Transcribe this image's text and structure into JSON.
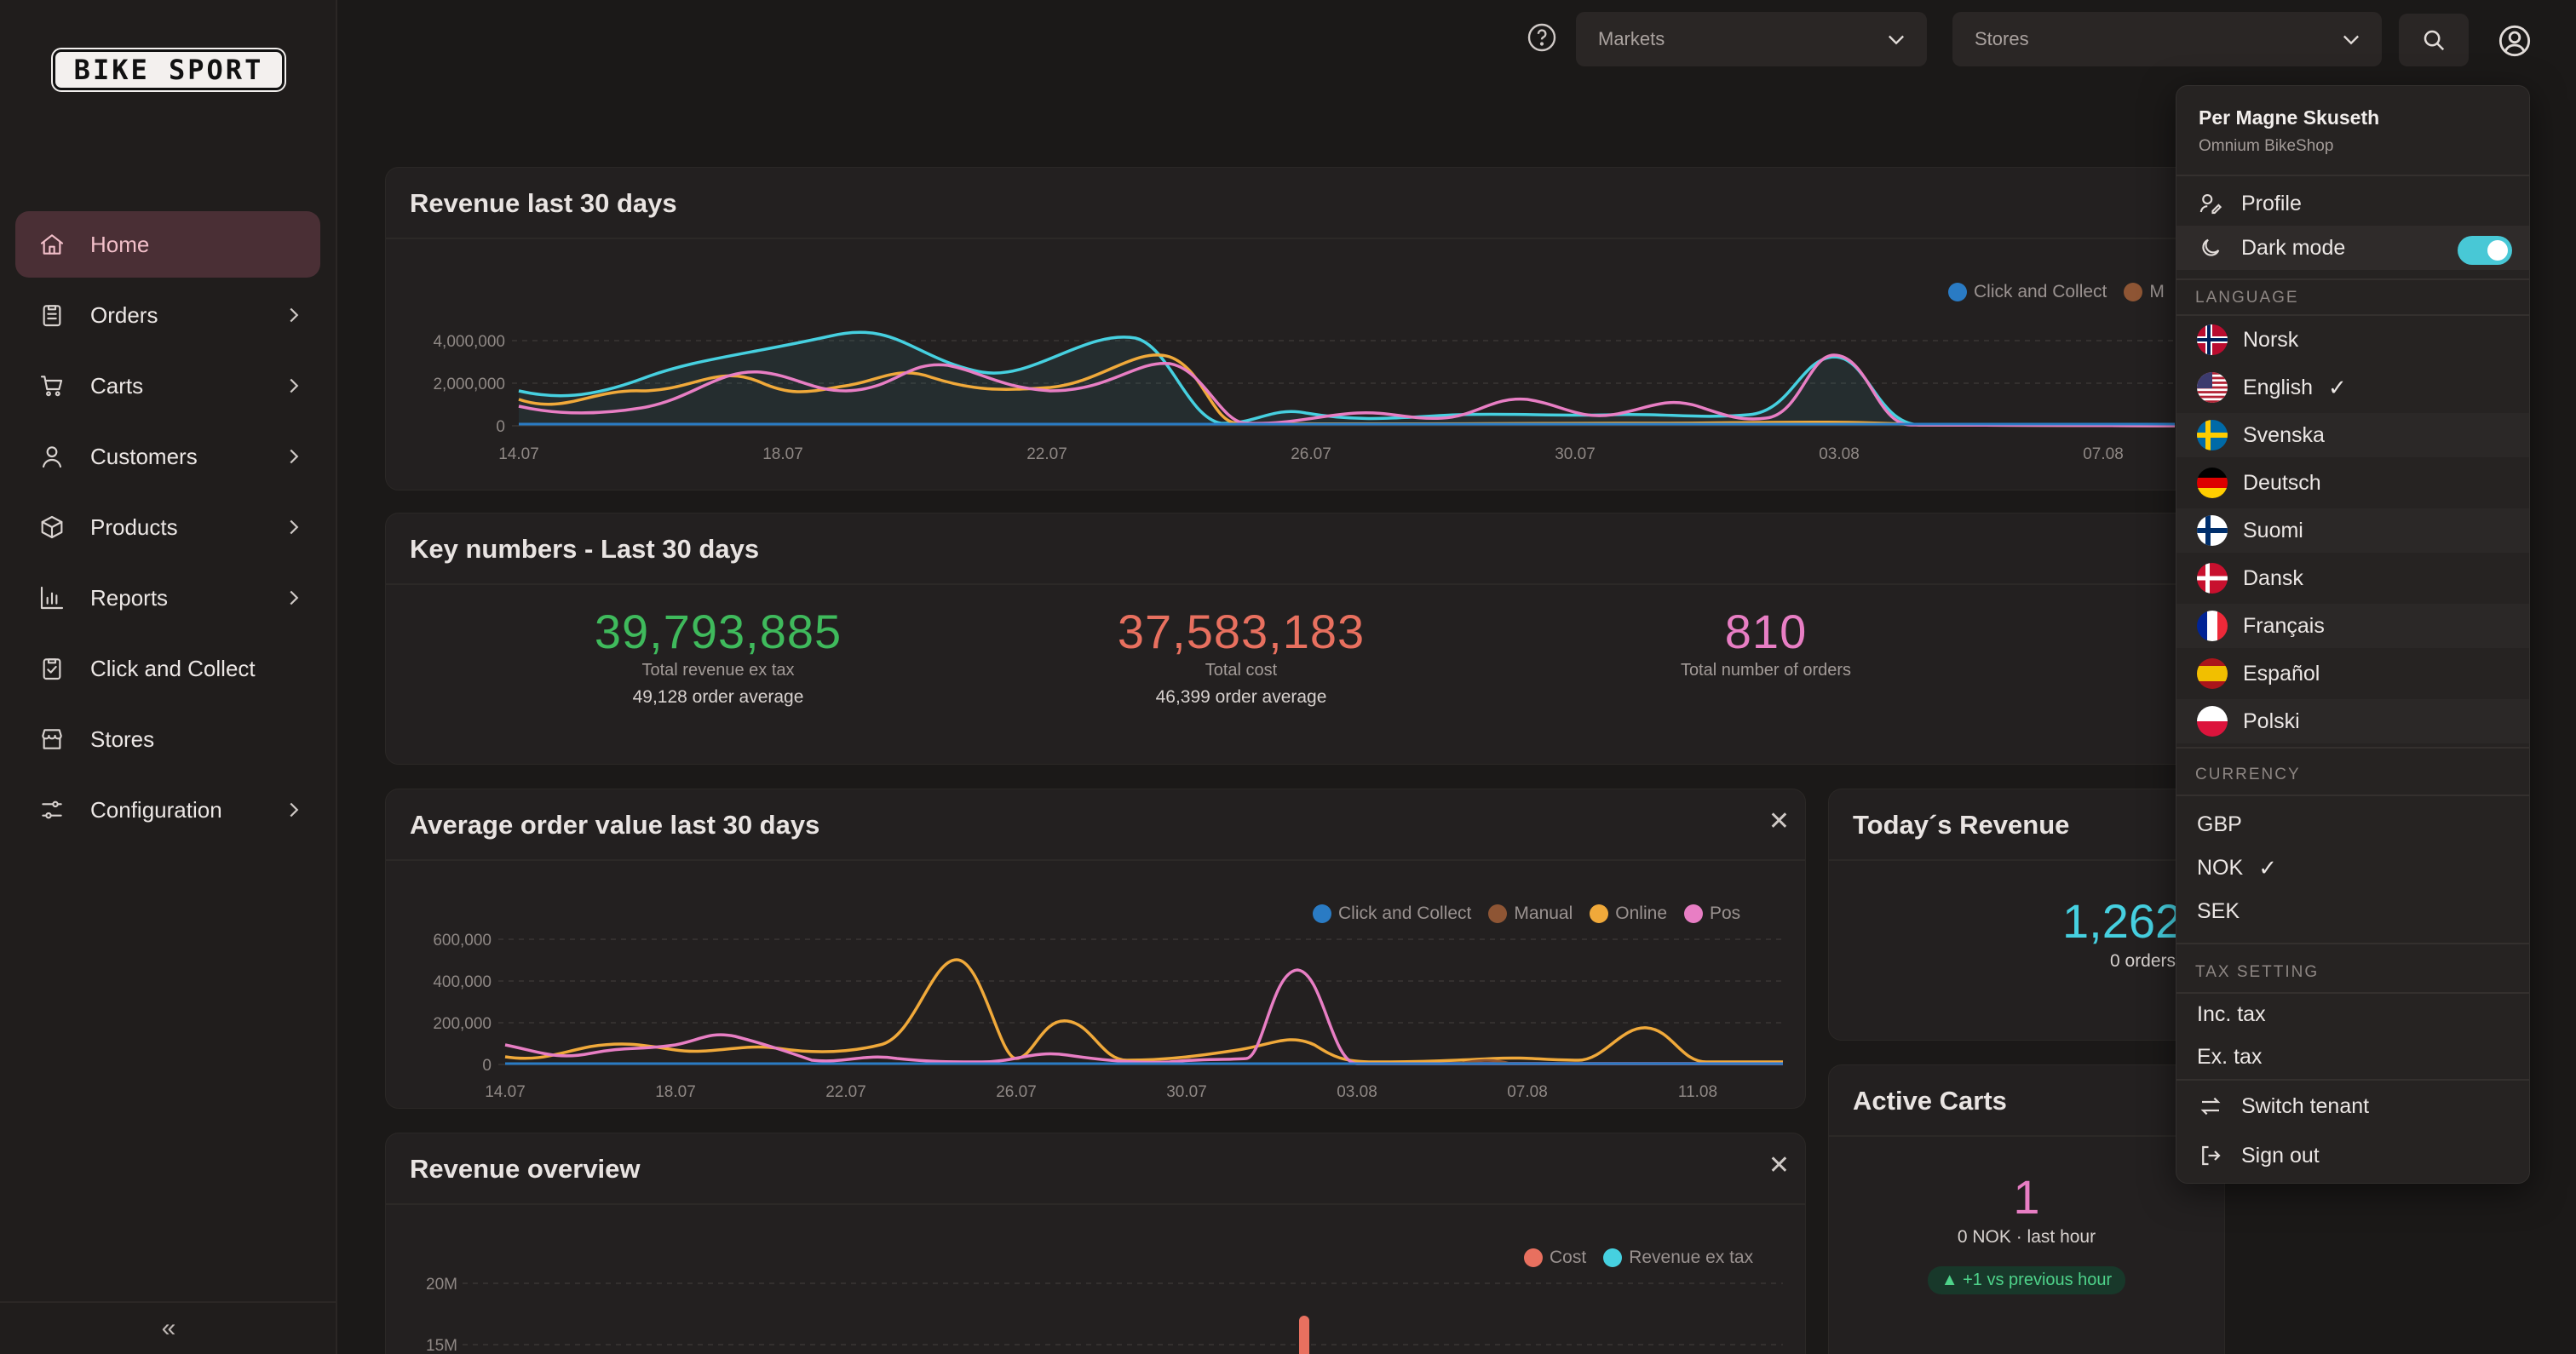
{
  "brand": {
    "logo_text": "BIKE SPORT"
  },
  "sidebar": {
    "items": [
      {
        "label": "Home",
        "icon": "home-icon",
        "active": true,
        "has_children": false
      },
      {
        "label": "Orders",
        "icon": "clipboard-icon",
        "active": false,
        "has_children": true
      },
      {
        "label": "Carts",
        "icon": "cart-icon",
        "active": false,
        "has_children": true
      },
      {
        "label": "Customers",
        "icon": "person-icon",
        "active": false,
        "has_children": true
      },
      {
        "label": "Products",
        "icon": "box-icon",
        "active": false,
        "has_children": true
      },
      {
        "label": "Reports",
        "icon": "bar-chart-icon",
        "active": false,
        "has_children": true
      },
      {
        "label": "Click and Collect",
        "icon": "clipboard-check-icon",
        "active": false,
        "has_children": false
      },
      {
        "label": "Stores",
        "icon": "store-icon",
        "active": false,
        "has_children": false
      },
      {
        "label": "Configuration",
        "icon": "sliders-icon",
        "active": false,
        "has_children": true
      }
    ],
    "collapse_label": "«"
  },
  "topbar": {
    "markets_placeholder": "Markets",
    "stores_placeholder": "Stores"
  },
  "revenue30": {
    "title": "Revenue last 30 days",
    "legend": [
      "Click and Collect",
      "M"
    ],
    "legend_colors": [
      "#2a7bc4",
      "#8e5534"
    ],
    "y_ticks": [
      "4,000,000",
      "2,000,000",
      "0"
    ],
    "x_ticks": [
      "14.07",
      "18.07",
      "22.07",
      "26.07",
      "30.07",
      "03.08",
      "07.08"
    ]
  },
  "keynumbers": {
    "title": "Key numbers - Last 30 days",
    "revenue": {
      "value": "39,793,885",
      "label": "Total revenue ex tax",
      "sub": "49,128 order average"
    },
    "cost": {
      "value": "37,583,183",
      "label": "Total cost",
      "sub": "46,399 order average"
    },
    "orders": {
      "value": "810",
      "label": "Total number of orders"
    }
  },
  "avgorder": {
    "title": "Average order value last 30 days",
    "close": "✕",
    "legend": [
      "Click and Collect",
      "Manual",
      "Online",
      "Pos"
    ],
    "legend_colors": [
      "#2a7bc4",
      "#8e5534",
      "#f0a93a",
      "#e87ec4"
    ],
    "y_ticks": [
      "600,000",
      "400,000",
      "200,000",
      "0"
    ],
    "x_ticks": [
      "14.07",
      "18.07",
      "22.07",
      "26.07",
      "30.07",
      "03.08",
      "07.08",
      "11.08"
    ]
  },
  "today": {
    "title": "Today´s Revenue",
    "value": "1,262",
    "sub": "0 orders"
  },
  "overview": {
    "title": "Revenue overview",
    "close": "✕",
    "legend": [
      "Cost",
      "Revenue ex tax"
    ],
    "legend_colors": [
      "#e8705f",
      "#46d0e0"
    ],
    "y_ticks": [
      "20M",
      "15M"
    ]
  },
  "carts": {
    "title": "Active Carts",
    "value": "1",
    "sub": "0 NOK · last hour",
    "badge": "▲ +1 vs previous hour"
  },
  "usermenu": {
    "name": "Per Magne Skuseth",
    "tenant": "Omnium BikeShop",
    "profile": "Profile",
    "darkmode": "Dark mode",
    "dark_on": true,
    "language_header": "LANGUAGE",
    "languages": [
      {
        "label": "Norsk",
        "flag": "no",
        "selected": false
      },
      {
        "label": "English",
        "flag": "us",
        "selected": true
      },
      {
        "label": "Svenska",
        "flag": "se",
        "selected": false
      },
      {
        "label": "Deutsch",
        "flag": "de",
        "selected": false
      },
      {
        "label": "Suomi",
        "flag": "fi",
        "selected": false
      },
      {
        "label": "Dansk",
        "flag": "dk",
        "selected": false
      },
      {
        "label": "Français",
        "flag": "fr",
        "selected": false
      },
      {
        "label": "Español",
        "flag": "es",
        "selected": false
      },
      {
        "label": "Polski",
        "flag": "pl",
        "selected": false
      }
    ],
    "currency_header": "CURRENCY",
    "currencies": [
      {
        "label": "GBP",
        "selected": false
      },
      {
        "label": "NOK",
        "selected": true
      },
      {
        "label": "SEK",
        "selected": false
      }
    ],
    "tax_header": "TAX SETTING",
    "tax": [
      "Inc. tax",
      "Ex. tax"
    ],
    "switch_tenant": "Switch tenant",
    "sign_out": "Sign out"
  },
  "colors": {
    "accent": "#48c8d6",
    "revenue_green": "#3fba5c",
    "cost_red": "#e8705f",
    "orders_pink": "#e87ec4"
  }
}
